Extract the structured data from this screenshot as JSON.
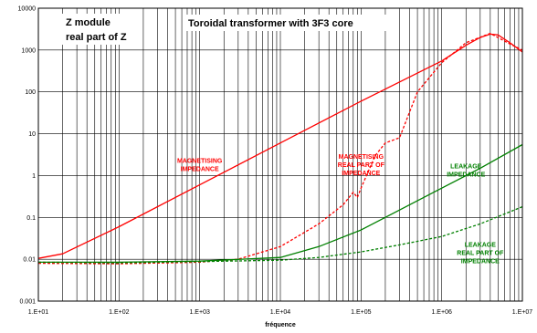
{
  "chart_data": {
    "type": "line",
    "title": "Toroidal transformer  with 3F3 core",
    "corner_box": [
      "Z module",
      "real part of Z"
    ],
    "xlabel": "fréquence",
    "ylabel": "",
    "x_scale": "log",
    "y_scale": "log",
    "xlim": [
      10,
      10000000
    ],
    "ylim": [
      0.001,
      10000
    ],
    "grid": true,
    "x_ticks": [
      "1.E+01",
      "1.E+02",
      "1.E+03",
      "1.E+04",
      "1.E+05",
      "1.E+06",
      "1.E+07"
    ],
    "y_ticks": [
      "0.001",
      "0.01",
      "0.1",
      "1",
      "10",
      "100",
      "1000",
      "10000"
    ],
    "series": [
      {
        "id": "mag_mod",
        "color": "#ff0000",
        "dash": "solid",
        "x": [
          10,
          20,
          100,
          1000,
          10000,
          100000,
          1000000,
          2000000,
          3000000,
          4000000,
          5000000,
          7000000,
          10000000
        ],
        "y": [
          0.0105,
          0.0135,
          0.06,
          0.6,
          6,
          60,
          550,
          1300,
          2000,
          2400,
          2300,
          1500,
          900
        ]
      },
      {
        "id": "mag_re",
        "color": "#ff0000",
        "dash": "dashed",
        "x": [
          10,
          100,
          1000,
          3000,
          10000,
          30000,
          60000,
          80000,
          90000,
          100000,
          150000,
          200000,
          300000,
          500000,
          1000000,
          2000000,
          4000000,
          7000000,
          10000000
        ],
        "y": [
          0.008,
          0.0078,
          0.0085,
          0.01,
          0.02,
          0.07,
          0.2,
          0.4,
          0.3,
          0.5,
          3,
          6,
          8,
          100,
          500,
          1500,
          2500,
          1400,
          1000
        ]
      },
      {
        "id": "leak_mod",
        "color": "#008000",
        "dash": "solid",
        "x": [
          10,
          100,
          1000,
          10000,
          30000,
          100000,
          300000,
          1000000,
          3000000,
          10000000
        ],
        "y": [
          0.0085,
          0.0085,
          0.009,
          0.011,
          0.02,
          0.05,
          0.15,
          0.5,
          1.5,
          5.5
        ]
      },
      {
        "id": "leak_re",
        "color": "#008000",
        "dash": "dashed",
        "x": [
          10,
          100,
          1000,
          10000,
          30000,
          100000,
          300000,
          1000000,
          3000000,
          10000000
        ],
        "y": [
          0.0085,
          0.0082,
          0.0088,
          0.0095,
          0.011,
          0.015,
          0.022,
          0.035,
          0.07,
          0.18
        ]
      }
    ],
    "annotations": [
      {
        "lines": [
          "MAGNETISING",
          "IMPEDANCE"
        ],
        "color": "#ff0000",
        "x": 1000,
        "y": 2
      },
      {
        "lines": [
          "MAGNETISING",
          "REAL PART OF",
          "IMPEDANCE"
        ],
        "color": "#ff0000",
        "x": 100000,
        "y": 2.5
      },
      {
        "lines": [
          "LEAKAGE",
          "IMPEDANCE"
        ],
        "color": "#008000",
        "x": 2000000,
        "y": 1.5
      },
      {
        "lines": [
          "LEAKAGE",
          "REAL PART OF",
          "IMPEDANCE"
        ],
        "color": "#008000",
        "x": 3000000,
        "y": 0.02
      }
    ]
  }
}
